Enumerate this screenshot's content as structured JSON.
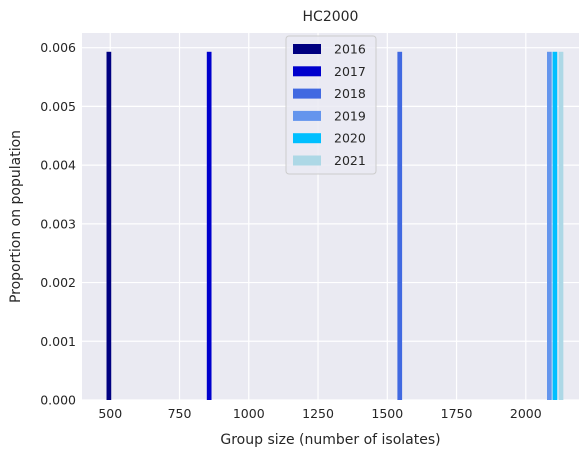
{
  "chart_data": {
    "type": "bar",
    "title": "HC2000",
    "xlabel": "Group size (number of isolates)",
    "ylabel": "Proportion on population",
    "xlim": [
      398,
      2192
    ],
    "ylim": [
      0,
      0.00625
    ],
    "xticks": [
      500,
      750,
      1000,
      1250,
      1500,
      1750,
      2000
    ],
    "xtick_labels": [
      "500",
      "750",
      "1000",
      "1250",
      "1500",
      "1750",
      "2000"
    ],
    "yticks": [
      0,
      0.001,
      0.002,
      0.003,
      0.004,
      0.005,
      0.006
    ],
    "ytick_labels": [
      "0.000",
      "0.001",
      "0.002",
      "0.003",
      "0.004",
      "0.005",
      "0.006"
    ],
    "grid": true,
    "legend_position": "top-center",
    "bar_width": 17,
    "series": [
      {
        "name": "2016",
        "color": "#000080",
        "x": [
          495
        ],
        "values": [
          0.00593
        ]
      },
      {
        "name": "2017",
        "color": "#0000cd",
        "x": [
          857
        ],
        "values": [
          0.00593
        ]
      },
      {
        "name": "2018",
        "color": "#4169e1",
        "x": [
          1545
        ],
        "values": [
          0.00593
        ]
      },
      {
        "name": "2019",
        "color": "#6495ed",
        "x": [
          2085
        ],
        "values": [
          0.00593
        ]
      },
      {
        "name": "2020",
        "color": "#00bfff",
        "x": [
          2105
        ],
        "values": [
          0.00593
        ]
      },
      {
        "name": "2021",
        "color": "#add8e6",
        "x": [
          2127
        ],
        "values": [
          0.00593
        ]
      }
    ]
  }
}
